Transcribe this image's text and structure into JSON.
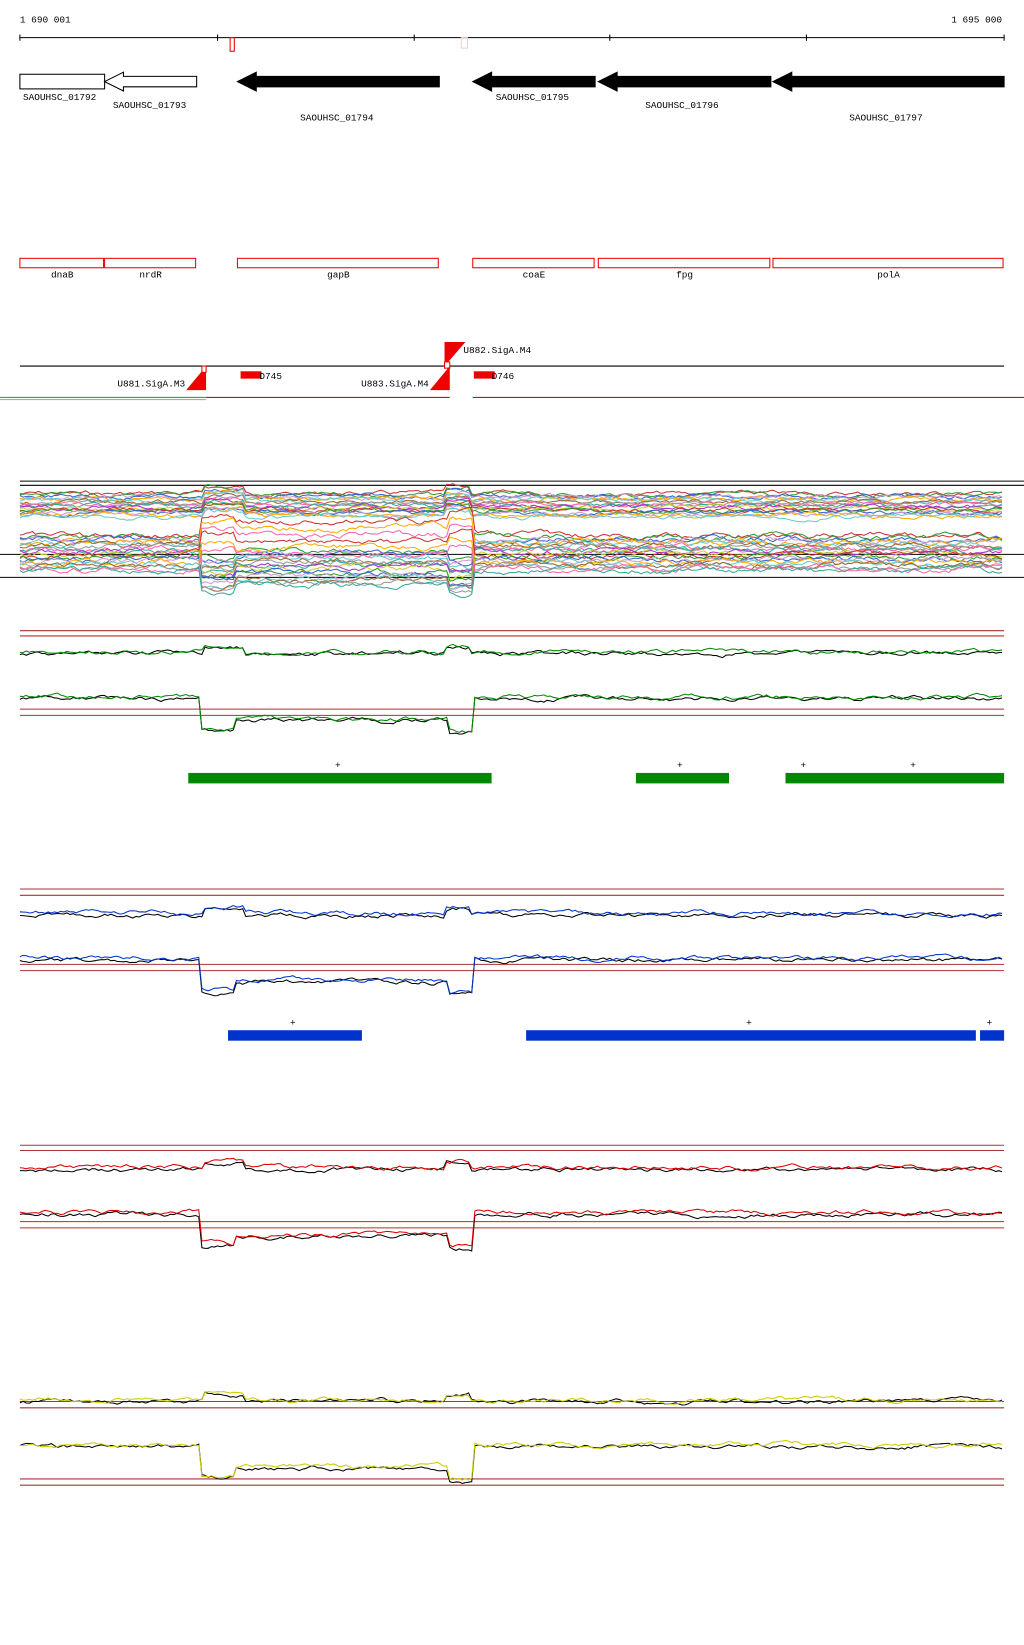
{
  "ruler": {
    "start": "1 690 001",
    "end": "1 695 000"
  },
  "genes": [
    {
      "id": "SAOUHSC_01792",
      "name": "dnaB"
    },
    {
      "id": "SAOUHSC_01793",
      "name": "nrdR"
    },
    {
      "id": "SAOUHSC_01794",
      "name": "gapB"
    },
    {
      "id": "SAOUHSC_01795",
      "name": "coaE"
    },
    {
      "id": "SAOUHSC_01796",
      "name": "fpg"
    },
    {
      "id": "SAOUHSC_01797",
      "name": "polA"
    }
  ],
  "features": [
    "U881.SigA.M3",
    "D745",
    "U882.SigA.M4",
    "U883.SigA.M4",
    "D746"
  ],
  "segments": {
    "green": [
      "+",
      "+",
      "+",
      "+"
    ],
    "blue": [
      "+",
      "+",
      "+"
    ]
  }
}
